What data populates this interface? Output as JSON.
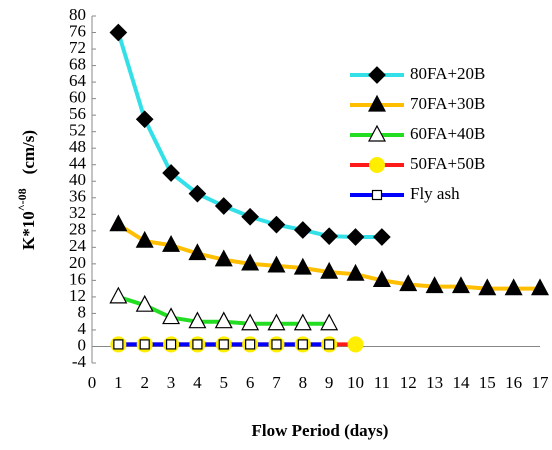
{
  "chart_data": {
    "type": "line",
    "x_label": "Flow Period (days)",
    "y_label": {
      "base": "K*10",
      "exponent": "^-08",
      "unit": "(cm/s)"
    },
    "xlim": [
      0,
      17
    ],
    "xticks": [
      0,
      1,
      2,
      3,
      4,
      5,
      6,
      7,
      8,
      9,
      10,
      11,
      12,
      13,
      14,
      15,
      16,
      17
    ],
    "ylim": [
      -4,
      80
    ],
    "yticks": [
      -4,
      0,
      4,
      8,
      12,
      16,
      20,
      24,
      28,
      32,
      36,
      40,
      44,
      48,
      52,
      56,
      60,
      64,
      68,
      72,
      76,
      80
    ],
    "legend": "upper-right",
    "series": [
      {
        "name": "80FA+20B",
        "color": "#33e0e8",
        "marker": "diamond",
        "marker_fill": "#000000",
        "x": [
          1,
          2,
          3,
          4,
          5,
          6,
          7,
          8,
          9,
          10,
          11
        ],
        "values": [
          76,
          55,
          42,
          37,
          34,
          31.4,
          29.5,
          28.2,
          26.7,
          26.5,
          26.5
        ]
      },
      {
        "name": "70FA+30B",
        "color": "#ffbf00",
        "marker": "triangle",
        "marker_fill": "#000000",
        "x": [
          1,
          2,
          3,
          4,
          5,
          6,
          7,
          8,
          9,
          10,
          11,
          12,
          13,
          14,
          15,
          16,
          17
        ],
        "values": [
          29.5,
          25.5,
          24.5,
          22.5,
          21,
          20,
          19.5,
          19,
          18,
          17.5,
          16,
          15,
          14.5,
          14.5,
          14,
          14,
          14
        ]
      },
      {
        "name": "60FA+40B",
        "color": "#22dd22",
        "marker": "triangle",
        "marker_fill": "#ffffff",
        "x": [
          1,
          2,
          3,
          4,
          5,
          6,
          7,
          8,
          9
        ],
        "values": [
          12,
          10,
          7,
          6,
          6,
          5.5,
          5.5,
          5.5,
          5.5
        ]
      },
      {
        "name": "50FA+50B",
        "color": "#ff1a1a",
        "marker": "circle",
        "marker_fill": "#ffee00",
        "x": [
          1,
          2,
          3,
          4,
          5,
          6,
          7,
          8,
          9,
          10
        ],
        "values": [
          0.5,
          0.5,
          0.5,
          0.5,
          0.5,
          0.5,
          0.5,
          0.5,
          0.5,
          0.5
        ]
      },
      {
        "name": "Fly ash",
        "color": "#0000ff",
        "marker": "square",
        "marker_fill": "#ffffff",
        "x": [
          1,
          2,
          3,
          4,
          5,
          6,
          7,
          8,
          9
        ],
        "values": [
          0.5,
          0.5,
          0.5,
          0.5,
          0.5,
          0.5,
          0.5,
          0.5,
          0.5
        ]
      }
    ]
  }
}
